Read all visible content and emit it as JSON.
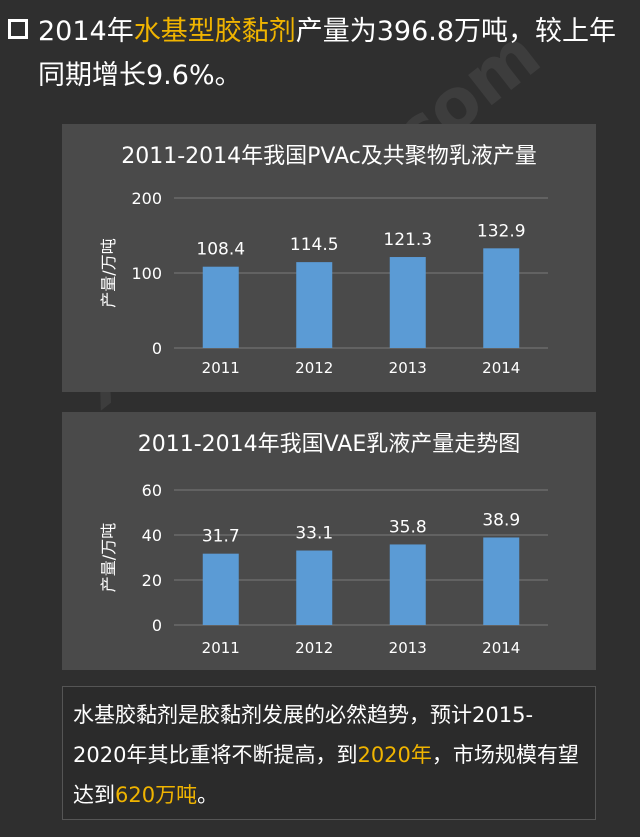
{
  "headline": {
    "prefix": "2014年",
    "highlight": "水基型胶黏剂",
    "suffix": "产量为396.8万吨，较上年同期增长9.6%。"
  },
  "colors": {
    "bar": "#5b9bd5",
    "highlight": "#f0b400",
    "panel": "#4a4a4a",
    "background": "#2f2f2f"
  },
  "chart_data": [
    {
      "type": "bar",
      "title": "2011-2014年我国PVAc及共聚物乳液产量",
      "ylabel": "产量/万吨",
      "xlabel": "",
      "categories": [
        "2011",
        "2012",
        "2013",
        "2014"
      ],
      "values": [
        108.4,
        114.5,
        121.3,
        132.9
      ],
      "data_labels": [
        "108.4",
        "114.5",
        "121.3",
        "132.9"
      ],
      "ylim": [
        0,
        200
      ],
      "yticks": [
        "0",
        "100",
        "200"
      ],
      "yticks_values": [
        0,
        100,
        200
      ],
      "grid": true
    },
    {
      "type": "bar",
      "title": "2011-2014年我国VAE乳液产量走势图",
      "ylabel": "产量/万吨",
      "xlabel": "",
      "categories": [
        "2011",
        "2012",
        "2013",
        "2014"
      ],
      "values": [
        31.7,
        33.1,
        35.8,
        38.9
      ],
      "data_labels": [
        "31.7",
        "33.1",
        "35.8",
        "38.9"
      ],
      "ylim": [
        0,
        60
      ],
      "yticks": [
        "0",
        "20",
        "40",
        "60"
      ],
      "yticks_values": [
        0,
        20,
        40,
        60
      ],
      "grid": true
    }
  ],
  "note": {
    "part1": "水基胶黏剂是胶黏剂发展的必然趋势，预计2015-2020年其比重将不断提高，到",
    "highlight1": "2020年",
    "part2": "，市场规模有望达到",
    "highlight2": "620万吨",
    "part3": "。"
  },
  "watermark": "xincailiao.com"
}
